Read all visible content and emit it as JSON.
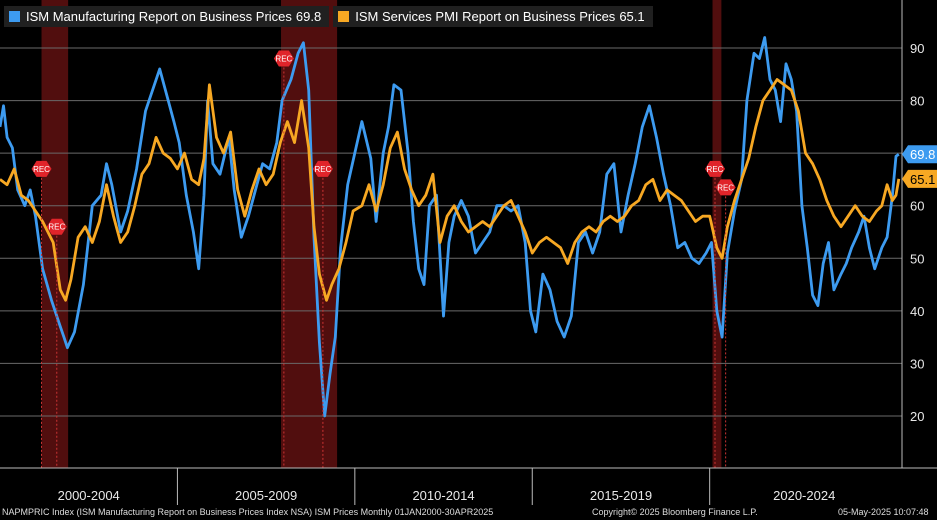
{
  "chart_data": {
    "type": "line",
    "x_start": "2000-01",
    "x_end": "2025-04",
    "ylim": [
      10,
      100
    ],
    "y_ticks": [
      20,
      30,
      40,
      50,
      60,
      70,
      80,
      90
    ],
    "period_labels": [
      "2000-2004",
      "2005-2009",
      "2010-2014",
      "2015-2019",
      "2020-2024"
    ],
    "recession_label": "REC",
    "recessions": [
      {
        "start": 2001.17,
        "end": 2001.92,
        "markers": [
          {
            "x": 2001.17,
            "y": 67
          },
          {
            "x": 2001.6,
            "y": 56
          }
        ]
      },
      {
        "start": 2007.92,
        "end": 2009.5,
        "markers": [
          {
            "x": 2008.0,
            "y": 88
          },
          {
            "x": 2009.1,
            "y": 67
          }
        ]
      },
      {
        "start": 2020.08,
        "end": 2020.33,
        "markers": [
          {
            "x": 2020.15,
            "y": 67
          },
          {
            "x": 2020.45,
            "y": 63.5
          }
        ]
      }
    ],
    "series": [
      {
        "name": "ISM Manufacturing Report on Business Prices",
        "last_value": "69.8",
        "color": "#3d9bf0",
        "points": [
          [
            2000.0,
            75
          ],
          [
            2000.1,
            79
          ],
          [
            2000.2,
            73
          ],
          [
            2000.35,
            71
          ],
          [
            2000.5,
            63
          ],
          [
            2000.7,
            60
          ],
          [
            2000.85,
            63
          ],
          [
            2001.0,
            58
          ],
          [
            2001.2,
            48
          ],
          [
            2001.45,
            42
          ],
          [
            2001.7,
            37
          ],
          [
            2001.8,
            35
          ],
          [
            2001.9,
            33
          ],
          [
            2002.1,
            36
          ],
          [
            2002.35,
            45
          ],
          [
            2002.6,
            60
          ],
          [
            2002.85,
            62
          ],
          [
            2003.0,
            68
          ],
          [
            2003.15,
            64
          ],
          [
            2003.4,
            55
          ],
          [
            2003.6,
            59
          ],
          [
            2003.85,
            67
          ],
          [
            2004.1,
            78
          ],
          [
            2004.3,
            82
          ],
          [
            2004.5,
            86
          ],
          [
            2004.7,
            81
          ],
          [
            2004.9,
            76
          ],
          [
            2005.05,
            72
          ],
          [
            2005.25,
            62
          ],
          [
            2005.45,
            55
          ],
          [
            2005.6,
            48
          ],
          [
            2005.75,
            62
          ],
          [
            2005.85,
            80
          ],
          [
            2006.0,
            68
          ],
          [
            2006.2,
            66
          ],
          [
            2006.45,
            73
          ],
          [
            2006.6,
            63
          ],
          [
            2006.8,
            54
          ],
          [
            2007.0,
            58
          ],
          [
            2007.2,
            63
          ],
          [
            2007.4,
            68
          ],
          [
            2007.6,
            67
          ],
          [
            2007.8,
            72
          ],
          [
            2007.95,
            80
          ],
          [
            2008.2,
            84
          ],
          [
            2008.4,
            89
          ],
          [
            2008.55,
            91
          ],
          [
            2008.7,
            82
          ],
          [
            2008.85,
            54
          ],
          [
            2009.0,
            34
          ],
          [
            2009.15,
            20
          ],
          [
            2009.3,
            28
          ],
          [
            2009.45,
            35
          ],
          [
            2009.6,
            52
          ],
          [
            2009.8,
            64
          ],
          [
            2010.0,
            70
          ],
          [
            2010.2,
            76
          ],
          [
            2010.45,
            69
          ],
          [
            2010.6,
            57
          ],
          [
            2010.8,
            70
          ],
          [
            2010.95,
            75
          ],
          [
            2011.1,
            83
          ],
          [
            2011.3,
            82
          ],
          [
            2011.5,
            70
          ],
          [
            2011.65,
            57
          ],
          [
            2011.8,
            48
          ],
          [
            2011.95,
            45
          ],
          [
            2012.1,
            60
          ],
          [
            2012.3,
            62
          ],
          [
            2012.5,
            39
          ],
          [
            2012.65,
            53
          ],
          [
            2012.8,
            58
          ],
          [
            2013.0,
            61
          ],
          [
            2013.2,
            58
          ],
          [
            2013.4,
            51
          ],
          [
            2013.6,
            53
          ],
          [
            2013.8,
            55
          ],
          [
            2014.0,
            60
          ],
          [
            2014.2,
            60
          ],
          [
            2014.4,
            59
          ],
          [
            2014.6,
            60
          ],
          [
            2014.8,
            53
          ],
          [
            2014.95,
            40
          ],
          [
            2015.1,
            36
          ],
          [
            2015.3,
            47
          ],
          [
            2015.5,
            44
          ],
          [
            2015.7,
            38
          ],
          [
            2015.9,
            35
          ],
          [
            2016.1,
            39
          ],
          [
            2016.3,
            53
          ],
          [
            2016.5,
            55
          ],
          [
            2016.7,
            51
          ],
          [
            2016.9,
            55
          ],
          [
            2017.1,
            66
          ],
          [
            2017.3,
            68
          ],
          [
            2017.5,
            55
          ],
          [
            2017.7,
            62
          ],
          [
            2017.9,
            68
          ],
          [
            2018.1,
            75
          ],
          [
            2018.3,
            79
          ],
          [
            2018.5,
            73
          ],
          [
            2018.7,
            66
          ],
          [
            2018.9,
            60
          ],
          [
            2019.1,
            52
          ],
          [
            2019.3,
            53
          ],
          [
            2019.5,
            50
          ],
          [
            2019.7,
            49
          ],
          [
            2019.9,
            51
          ],
          [
            2020.05,
            53
          ],
          [
            2020.2,
            40
          ],
          [
            2020.35,
            35
          ],
          [
            2020.5,
            51
          ],
          [
            2020.7,
            59
          ],
          [
            2020.9,
            65
          ],
          [
            2021.05,
            80
          ],
          [
            2021.25,
            89
          ],
          [
            2021.4,
            88
          ],
          [
            2021.55,
            92
          ],
          [
            2021.7,
            84
          ],
          [
            2021.85,
            82
          ],
          [
            2022.0,
            76
          ],
          [
            2022.15,
            87
          ],
          [
            2022.3,
            84
          ],
          [
            2022.45,
            78
          ],
          [
            2022.6,
            60
          ],
          [
            2022.75,
            52
          ],
          [
            2022.9,
            43
          ],
          [
            2023.05,
            41
          ],
          [
            2023.2,
            49
          ],
          [
            2023.35,
            53
          ],
          [
            2023.5,
            44
          ],
          [
            2023.7,
            47
          ],
          [
            2023.85,
            49
          ],
          [
            2024.0,
            52
          ],
          [
            2024.2,
            55
          ],
          [
            2024.35,
            58
          ],
          [
            2024.5,
            52
          ],
          [
            2024.65,
            48
          ],
          [
            2024.85,
            52
          ],
          [
            2025.0,
            54
          ],
          [
            2025.15,
            62
          ],
          [
            2025.25,
            69.4
          ],
          [
            2025.33,
            69.8
          ]
        ]
      },
      {
        "name": "ISM Services PMI Report on Business Prices",
        "last_value": "65.1",
        "color": "#f7a823",
        "points": [
          [
            2000.0,
            65
          ],
          [
            2000.2,
            64
          ],
          [
            2000.4,
            67
          ],
          [
            2000.6,
            62
          ],
          [
            2000.8,
            61
          ],
          [
            2001.0,
            59
          ],
          [
            2001.2,
            57
          ],
          [
            2001.5,
            53
          ],
          [
            2001.7,
            44
          ],
          [
            2001.85,
            42
          ],
          [
            2002.0,
            46
          ],
          [
            2002.2,
            54
          ],
          [
            2002.4,
            56
          ],
          [
            2002.6,
            53
          ],
          [
            2002.8,
            57
          ],
          [
            2003.0,
            64
          ],
          [
            2003.2,
            58
          ],
          [
            2003.4,
            53
          ],
          [
            2003.6,
            55
          ],
          [
            2003.8,
            60
          ],
          [
            2004.0,
            66
          ],
          [
            2004.2,
            68
          ],
          [
            2004.4,
            73
          ],
          [
            2004.6,
            70
          ],
          [
            2004.8,
            69
          ],
          [
            2005.0,
            67
          ],
          [
            2005.2,
            70
          ],
          [
            2005.4,
            65
          ],
          [
            2005.6,
            64
          ],
          [
            2005.75,
            69
          ],
          [
            2005.9,
            83
          ],
          [
            2006.1,
            73
          ],
          [
            2006.3,
            70
          ],
          [
            2006.5,
            74
          ],
          [
            2006.7,
            63
          ],
          [
            2006.9,
            58
          ],
          [
            2007.1,
            63
          ],
          [
            2007.3,
            67
          ],
          [
            2007.5,
            64
          ],
          [
            2007.7,
            66
          ],
          [
            2007.9,
            72
          ],
          [
            2008.1,
            76
          ],
          [
            2008.3,
            72
          ],
          [
            2008.5,
            80
          ],
          [
            2008.7,
            71
          ],
          [
            2008.85,
            56
          ],
          [
            2009.0,
            47
          ],
          [
            2009.2,
            42
          ],
          [
            2009.35,
            45
          ],
          [
            2009.55,
            48
          ],
          [
            2009.75,
            53
          ],
          [
            2009.95,
            59
          ],
          [
            2010.2,
            60
          ],
          [
            2010.4,
            64
          ],
          [
            2010.6,
            59
          ],
          [
            2010.8,
            64
          ],
          [
            2011.0,
            71
          ],
          [
            2011.2,
            74
          ],
          [
            2011.4,
            67
          ],
          [
            2011.6,
            63
          ],
          [
            2011.8,
            60
          ],
          [
            2012.0,
            62
          ],
          [
            2012.2,
            66
          ],
          [
            2012.4,
            53
          ],
          [
            2012.6,
            58
          ],
          [
            2012.8,
            60
          ],
          [
            2013.0,
            57
          ],
          [
            2013.2,
            55
          ],
          [
            2013.4,
            56
          ],
          [
            2013.6,
            57
          ],
          [
            2013.8,
            56
          ],
          [
            2014.0,
            58
          ],
          [
            2014.2,
            60
          ],
          [
            2014.4,
            61
          ],
          [
            2014.6,
            58
          ],
          [
            2014.8,
            55
          ],
          [
            2015.0,
            51
          ],
          [
            2015.2,
            53
          ],
          [
            2015.4,
            54
          ],
          [
            2015.6,
            53
          ],
          [
            2015.8,
            52
          ],
          [
            2016.0,
            49
          ],
          [
            2016.2,
            53
          ],
          [
            2016.4,
            55
          ],
          [
            2016.6,
            56
          ],
          [
            2016.8,
            55
          ],
          [
            2017.0,
            57
          ],
          [
            2017.2,
            58
          ],
          [
            2017.4,
            57
          ],
          [
            2017.6,
            58
          ],
          [
            2017.8,
            60
          ],
          [
            2018.0,
            61
          ],
          [
            2018.2,
            64
          ],
          [
            2018.4,
            65
          ],
          [
            2018.6,
            61
          ],
          [
            2018.8,
            63
          ],
          [
            2019.0,
            62
          ],
          [
            2019.2,
            61
          ],
          [
            2019.4,
            59
          ],
          [
            2019.6,
            57
          ],
          [
            2019.8,
            58
          ],
          [
            2020.0,
            58
          ],
          [
            2020.2,
            52
          ],
          [
            2020.35,
            50
          ],
          [
            2020.5,
            56
          ],
          [
            2020.7,
            61
          ],
          [
            2020.9,
            65
          ],
          [
            2021.1,
            69
          ],
          [
            2021.3,
            75
          ],
          [
            2021.5,
            80
          ],
          [
            2021.7,
            82
          ],
          [
            2021.9,
            84
          ],
          [
            2022.1,
            83
          ],
          [
            2022.3,
            82
          ],
          [
            2022.5,
            78
          ],
          [
            2022.7,
            70
          ],
          [
            2022.9,
            68
          ],
          [
            2023.1,
            65
          ],
          [
            2023.3,
            61
          ],
          [
            2023.5,
            58
          ],
          [
            2023.7,
            56
          ],
          [
            2023.9,
            58
          ],
          [
            2024.1,
            60
          ],
          [
            2024.3,
            58
          ],
          [
            2024.5,
            57
          ],
          [
            2024.7,
            59
          ],
          [
            2024.85,
            60
          ],
          [
            2025.0,
            64
          ],
          [
            2025.15,
            61
          ],
          [
            2025.25,
            62
          ],
          [
            2025.33,
            65.1
          ]
        ]
      }
    ]
  },
  "footer": {
    "source": "NAPMPRIC Index (ISM Manufacturing Report on Business Prices Index NSA) ISM Prices  Monthly 01JAN2000-30APR2025",
    "copyright": "Copyright© 2025 Bloomberg Finance L.P.",
    "timestamp": "05-May-2025 10:07:48"
  }
}
